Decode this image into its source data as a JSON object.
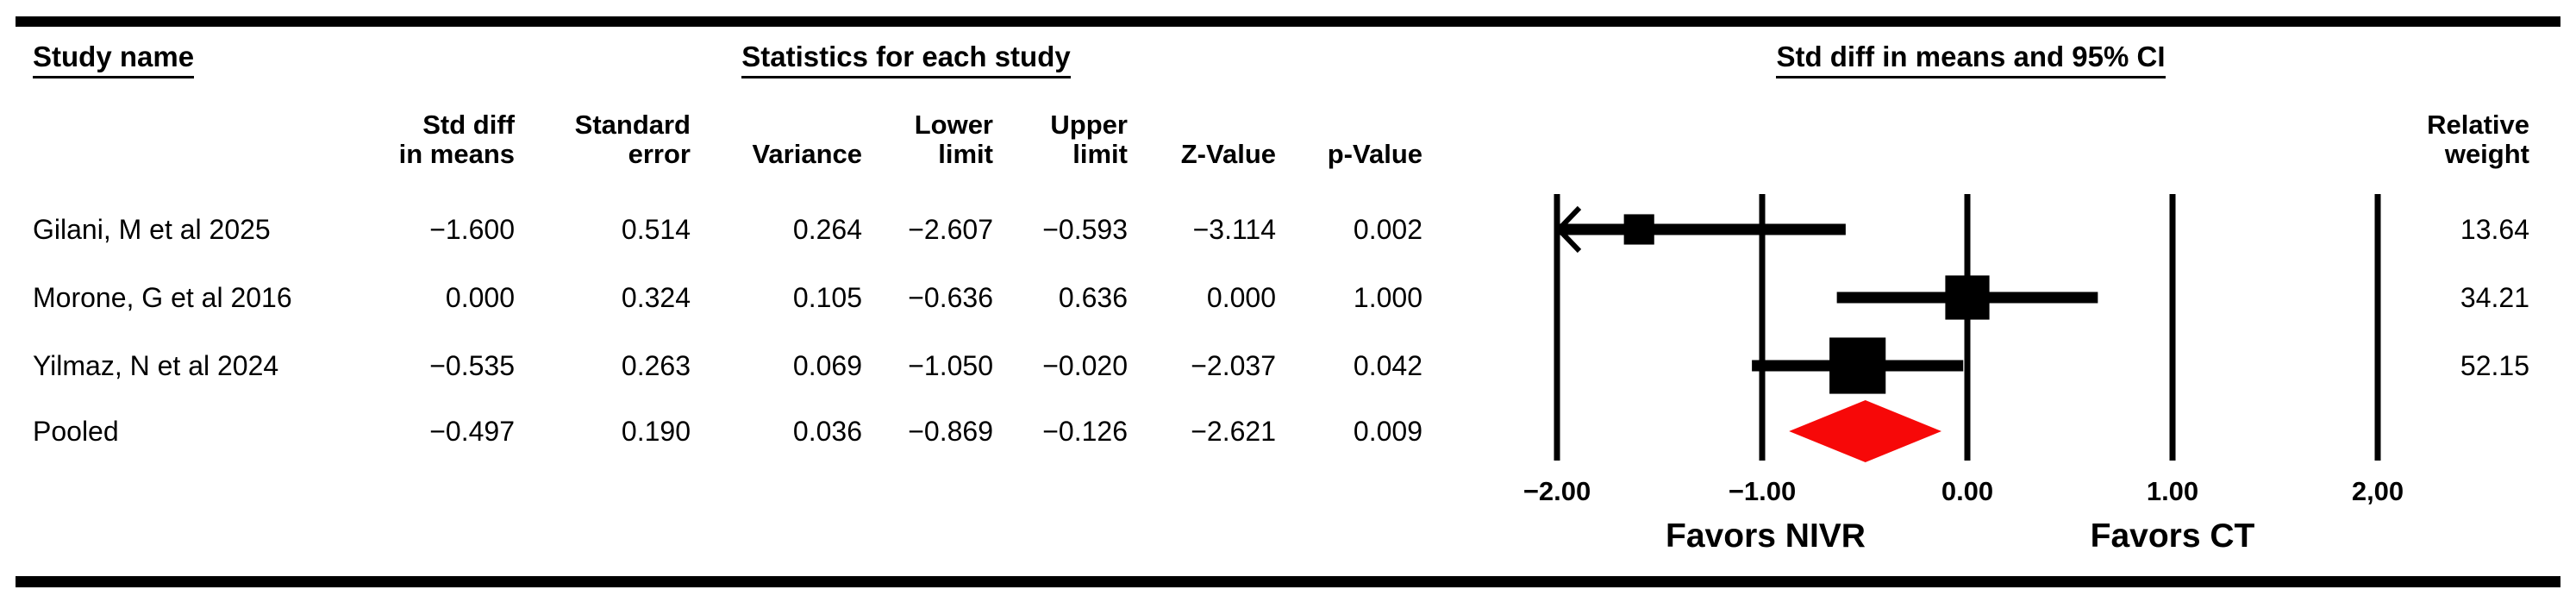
{
  "section_headers": {
    "study": "Study name",
    "stats": "Statistics for each study",
    "plot": "Std diff in means and 95% CI"
  },
  "columns": {
    "std_diff": {
      "line1": "Std diff",
      "line2": "in means"
    },
    "std_err": {
      "line1": "Standard",
      "line2": "error"
    },
    "variance": {
      "line1": "",
      "line2": "Variance"
    },
    "lower": {
      "line1": "Lower",
      "line2": "limit"
    },
    "upper": {
      "line1": "Upper",
      "line2": "limit"
    },
    "z": {
      "line1": "",
      "line2": "Z-Value"
    },
    "p": {
      "line1": "",
      "line2": "p-Value"
    },
    "weight": {
      "line1": "Relative",
      "line2": "weight"
    }
  },
  "table": {
    "rows": [
      {
        "study": "Gilani, M et al 2025",
        "std_diff": "−1.600",
        "std_err": "0.514",
        "variance": "0.264",
        "lower": "−2.607",
        "upper": "−0.593",
        "z": "−3.114",
        "p": "0.002",
        "weight": "13.64"
      },
      {
        "study": "Morone, G et al 2016",
        "std_diff": "0.000",
        "std_err": "0.324",
        "variance": "0.105",
        "lower": "−0.636",
        "upper": "0.636",
        "z": "0.000",
        "p": "1.000",
        "weight": "34.21"
      },
      {
        "study": "Yilmaz, N et al 2024",
        "std_diff": "−0.535",
        "std_err": "0.263",
        "variance": "0.069",
        "lower": "−1.050",
        "upper": "−0.020",
        "z": "−2.037",
        "p": "0.042",
        "weight": "52.15"
      },
      {
        "study": "Pooled",
        "std_diff": "−0.497",
        "std_err": "0.190",
        "variance": "0.036",
        "lower": "−0.869",
        "upper": "−0.126",
        "z": "−2.621",
        "p": "0.009",
        "weight": ""
      }
    ]
  },
  "chart_data": {
    "type": "forest",
    "title": "Std diff in means and 95% CI",
    "xlim": [
      -2,
      2
    ],
    "x_ticks": [
      -2,
      -1,
      0,
      1,
      2
    ],
    "x_tick_labels": [
      "−2.00",
      "−1.00",
      "0.00",
      "1.00",
      "2,00"
    ],
    "footer_labels": {
      "left": "Favors NIVR",
      "right": "Favors CT"
    },
    "studies": [
      {
        "name": "Gilani, M et al 2025",
        "point": -1.6,
        "lower": -2.607,
        "upper": -0.593,
        "weight": 13.64
      },
      {
        "name": "Morone, G et al 2016",
        "point": 0.0,
        "lower": -0.636,
        "upper": 0.636,
        "weight": 34.21
      },
      {
        "name": "Yilmaz, N et al 2024",
        "point": -0.535,
        "lower": -1.05,
        "upper": -0.02,
        "weight": 52.15
      }
    ],
    "pooled": {
      "name": "Pooled",
      "point": -0.497,
      "lower": -0.869,
      "upper": -0.126
    },
    "colors": {
      "marker": "#000000",
      "pooled_diamond": "#f70808",
      "grid": "#000000"
    }
  }
}
